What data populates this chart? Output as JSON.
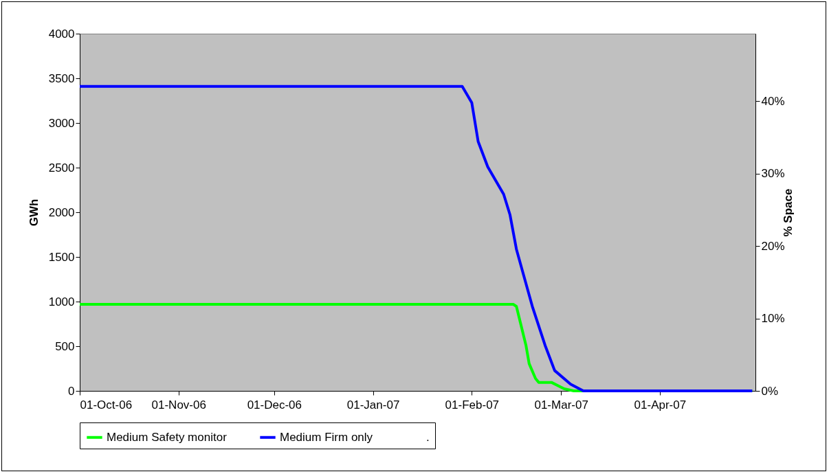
{
  "chart_data": {
    "type": "line",
    "ylabel": "GWh",
    "y2label": "% Space",
    "xlim": [
      "2006-10-01",
      "2007-05-01"
    ],
    "xticks": [
      {
        "value": "2006-10-01",
        "label": "01-Oct-06"
      },
      {
        "value": "2006-11-01",
        "label": "01-Nov-06"
      },
      {
        "value": "2006-12-01",
        "label": "01-Dec-06"
      },
      {
        "value": "2007-01-01",
        "label": "01-Jan-07"
      },
      {
        "value": "2007-02-01",
        "label": "01-Feb-07"
      },
      {
        "value": "2007-03-01",
        "label": "01-Mar-07"
      },
      {
        "value": "2007-04-01",
        "label": "01-Apr-07"
      }
    ],
    "ylim": [
      0,
      4000
    ],
    "yticks": [
      0,
      500,
      1000,
      1500,
      2000,
      2500,
      3000,
      3500,
      4000
    ],
    "y2lim": [
      0,
      49.3
    ],
    "y2ticks": [
      {
        "value": 0,
        "label": "0%"
      },
      {
        "value": 10,
        "label": "10%"
      },
      {
        "value": 20,
        "label": "20%"
      },
      {
        "value": 30,
        "label": "30%"
      },
      {
        "value": 40,
        "label": "40%"
      }
    ],
    "grid": false,
    "legend": "bottom",
    "marker": "none",
    "line_style": "solid",
    "series": [
      {
        "name": "Medium Safety monitor",
        "color": "#00ff00",
        "x": [
          "2006-10-01",
          "2007-02-14",
          "2007-02-15",
          "2007-02-18",
          "2007-02-19",
          "2007-02-21",
          "2007-02-22",
          "2007-02-26",
          "2007-03-02",
          "2007-03-05",
          "2007-04-30"
        ],
        "values": [
          970,
          970,
          946,
          510,
          305,
          138,
          95,
          95,
          23,
          0,
          0
        ]
      },
      {
        "name": "Medium Firm only",
        "color": "#0000ff",
        "x": [
          "2006-10-01",
          "2007-01-29",
          "2007-02-01",
          "2007-02-03",
          "2007-02-06",
          "2007-02-11",
          "2007-02-13",
          "2007-02-15",
          "2007-02-18",
          "2007-02-20",
          "2007-02-24",
          "2007-02-27",
          "2007-03-04",
          "2007-03-08",
          "2007-04-30"
        ],
        "values": [
          3410,
          3410,
          3227,
          2792,
          2509,
          2202,
          1971,
          1587,
          1202,
          946,
          510,
          228,
          75,
          0,
          0
        ]
      },
      {
        "name": "."
      }
    ]
  }
}
